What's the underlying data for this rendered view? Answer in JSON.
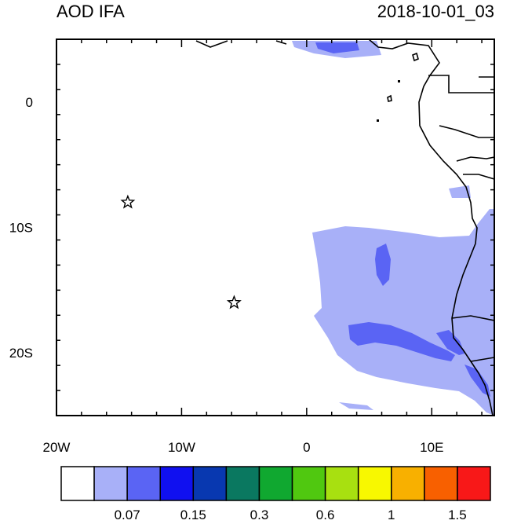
{
  "title_left": "AOD IFA",
  "title_right": "2018-10-01_03",
  "map": {
    "lon_range": [
      -20,
      15
    ],
    "lat_range": [
      -25,
      5
    ],
    "x_ticks": [
      {
        "lon": -20,
        "label": "20W"
      },
      {
        "lon": -10,
        "label": "10W"
      },
      {
        "lon": 0,
        "label": "0"
      },
      {
        "lon": 10,
        "label": "10E"
      }
    ],
    "y_ticks": [
      {
        "lat": 0,
        "label": "0"
      },
      {
        "lat": -10,
        "label": "10S"
      },
      {
        "lat": -20,
        "label": "20S"
      }
    ],
    "star_markers": [
      {
        "lon": -14.3,
        "lat": -8.0,
        "icon": "star-outline"
      },
      {
        "lon": -5.8,
        "lat": -16.0,
        "icon": "star-outline"
      }
    ]
  },
  "colorbar": {
    "colors": [
      "#ffffff",
      "#a8b0f8",
      "#5a64f4",
      "#1010f0",
      "#0838b0",
      "#0a7860",
      "#10a830",
      "#50c810",
      "#a8e010",
      "#f8f800",
      "#f8b000",
      "#f86000",
      "#f81818"
    ],
    "labels": [
      {
        "after_box": 2,
        "text": "0.07"
      },
      {
        "after_box": 4,
        "text": "0.15"
      },
      {
        "after_box": 6,
        "text": "0.3"
      },
      {
        "after_box": 8,
        "text": "0.6"
      },
      {
        "after_box": 10,
        "text": "1"
      },
      {
        "after_box": 12,
        "text": "1.5"
      }
    ]
  }
}
